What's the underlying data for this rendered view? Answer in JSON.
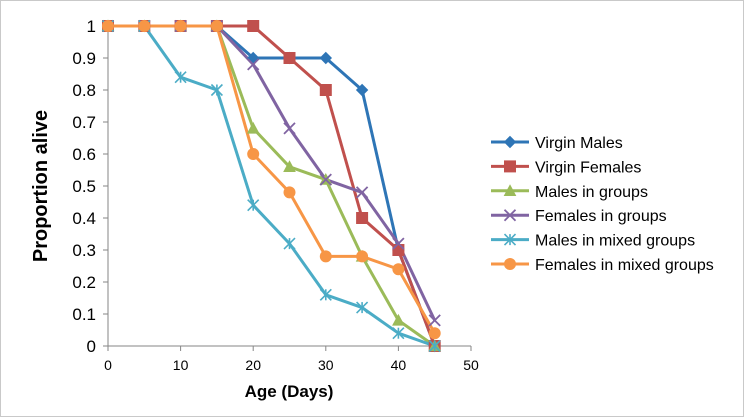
{
  "chart_data": {
    "type": "line",
    "title": "",
    "xlabel": "Age (Days)",
    "ylabel": "Proportion alive",
    "xlim": [
      0,
      50
    ],
    "ylim": [
      0,
      1
    ],
    "xticks": [
      0,
      10,
      20,
      30,
      40,
      50
    ],
    "xtick_labels": [
      "0",
      "10",
      "20",
      "30",
      "40",
      "50"
    ],
    "yticks": [
      0,
      0.1,
      0.2,
      0.3,
      0.4,
      0.5,
      0.6,
      0.7,
      0.8,
      0.9,
      1
    ],
    "ytick_labels": [
      "0",
      "0.1",
      "0.2",
      "0.3",
      "0.4",
      "0.5",
      "0.6",
      "0.7",
      "0.8",
      "0.9",
      "1"
    ],
    "grid": false,
    "legend_position": "right",
    "x": [
      0,
      5,
      10,
      15,
      20,
      25,
      30,
      35,
      40,
      45
    ],
    "series": [
      {
        "name": "Virgin Males",
        "color": "#2E75B6",
        "marker": "diamond",
        "values": [
          1,
          1,
          1,
          1,
          0.9,
          0.9,
          0.9,
          0.8,
          0.3,
          0
        ]
      },
      {
        "name": "Virgin Females",
        "color": "#C0504D",
        "marker": "square",
        "values": [
          1,
          1,
          1,
          1,
          1,
          0.9,
          0.8,
          0.4,
          0.3,
          0
        ]
      },
      {
        "name": "Males in groups",
        "color": "#9BBB59",
        "marker": "triangle",
        "values": [
          1,
          1,
          1,
          1,
          0.68,
          0.56,
          0.52,
          0.28,
          0.08,
          0
        ]
      },
      {
        "name": "Females in groups",
        "color": "#8064A2",
        "marker": "x",
        "values": [
          1,
          1,
          1,
          1,
          0.88,
          0.68,
          0.52,
          0.48,
          0.32,
          0.08
        ]
      },
      {
        "name": "Males in mixed groups",
        "color": "#4BACC6",
        "marker": "star",
        "values": [
          1,
          1,
          0.84,
          0.8,
          0.44,
          0.32,
          0.16,
          0.12,
          0.04,
          0
        ]
      },
      {
        "name": "Females in mixed groups",
        "color": "#F79646",
        "marker": "circle",
        "values": [
          1,
          1,
          1,
          1,
          0.6,
          0.48,
          0.28,
          0.28,
          0.24,
          0.04
        ]
      }
    ]
  }
}
